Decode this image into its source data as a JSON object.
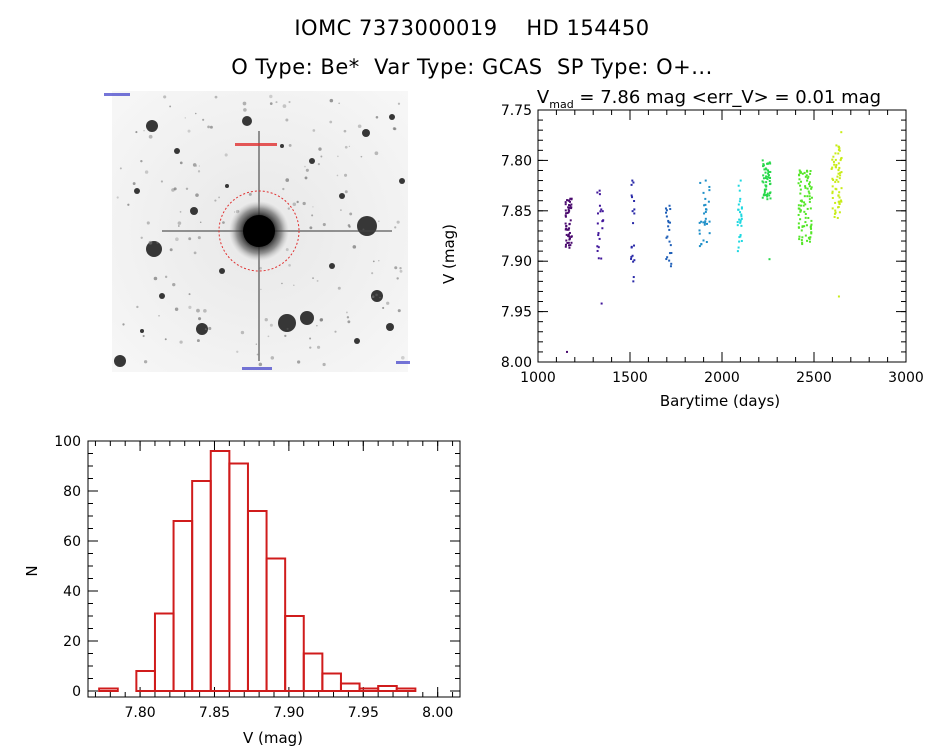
{
  "header": {
    "line1": "IOMC 7373000019    HD 154450",
    "line2": "O Type: Be*  Var Type: GCAS  SP Type: O+..."
  },
  "colors": {
    "histogram": "#d01c1c",
    "aperture_circle": "#e03030",
    "series": [
      "#4a0a6e",
      "#40159a",
      "#2a2aa8",
      "#1f5fb8",
      "#1e8fc8",
      "#1ed8e0",
      "#28d84a",
      "#54e628",
      "#c8ec18",
      "#e8a818",
      "#d86a10"
    ]
  },
  "sky_image": {
    "type": "grayscale-star-field-cutout",
    "has_aperture_circle": true
  },
  "chart_data": [
    {
      "type": "scatter",
      "title": "V_mad = 7.86 mag <err_V> = 0.01 mag",
      "title_parts": {
        "prefix": "V",
        "sub": "mad",
        "rest": " = 7.86 mag <err_V> = 0.01 mag"
      },
      "xlabel": "Barytime (days)",
      "ylabel": "V (mag)",
      "xlim": [
        1000,
        3000
      ],
      "ylim": [
        7.75,
        8.0
      ],
      "y_inverted": true,
      "xticks": [
        "1000",
        "1500",
        "2000",
        "2500",
        "3000"
      ],
      "yticks": [
        "7.75",
        "7.80",
        "7.85",
        "7.90",
        "7.95",
        "8.00"
      ],
      "groups": [
        {
          "x": [
            1150,
            1185
          ],
          "y": [
            7.838,
            7.89
          ],
          "ymin": 7.838,
          "ymax": 7.99,
          "n": 55
        },
        {
          "x": [
            1320,
            1355
          ],
          "y": [
            7.83,
            7.905
          ],
          "ymin": 7.83,
          "ymax": 7.942,
          "n": 22
        },
        {
          "x": [
            1505,
            1525
          ],
          "y": [
            7.82,
            7.92
          ],
          "ymin": 7.82,
          "ymax": 7.92,
          "n": 20
        },
        {
          "x": [
            1695,
            1725
          ],
          "y": [
            7.845,
            7.905
          ],
          "ymin": 7.845,
          "ymax": 7.905,
          "n": 22
        },
        {
          "x": [
            1875,
            1935
          ],
          "y": [
            7.82,
            7.885
          ],
          "ymin": 7.82,
          "ymax": 7.885,
          "n": 30
        },
        {
          "x": [
            2085,
            2110
          ],
          "y": [
            7.825,
            7.89
          ],
          "ymin": 7.82,
          "ymax": 7.89,
          "n": 28
        },
        {
          "x": [
            2220,
            2265
          ],
          "y": [
            7.8,
            7.84
          ],
          "ymin": 7.8,
          "ymax": 7.898,
          "n": 55
        },
        {
          "x": [
            2415,
            2490
          ],
          "y": [
            7.81,
            7.882
          ],
          "ymin": 7.81,
          "ymax": 7.883,
          "n": 90
        },
        {
          "x": [
            2595,
            2650
          ],
          "y": [
            7.785,
            7.86
          ],
          "ymin": 7.772,
          "ymax": 7.935,
          "n": 65
        }
      ]
    },
    {
      "type": "bar",
      "subtype": "histogram",
      "xlabel": "V (mag)",
      "ylabel": "N",
      "xlim": [
        7.765,
        8.015
      ],
      "ylim": [
        0,
        100
      ],
      "xticks": [
        "7.80",
        "7.85",
        "7.90",
        "7.95",
        "8.00"
      ],
      "yticks": [
        "0",
        "20",
        "40",
        "60",
        "80",
        "100"
      ],
      "bin_width": 0.0125,
      "bin_edges_start": 7.7725,
      "counts": [
        1,
        0,
        8,
        31,
        68,
        84,
        96,
        91,
        72,
        53,
        30,
        15,
        7,
        3,
        1,
        2,
        1
      ]
    }
  ]
}
